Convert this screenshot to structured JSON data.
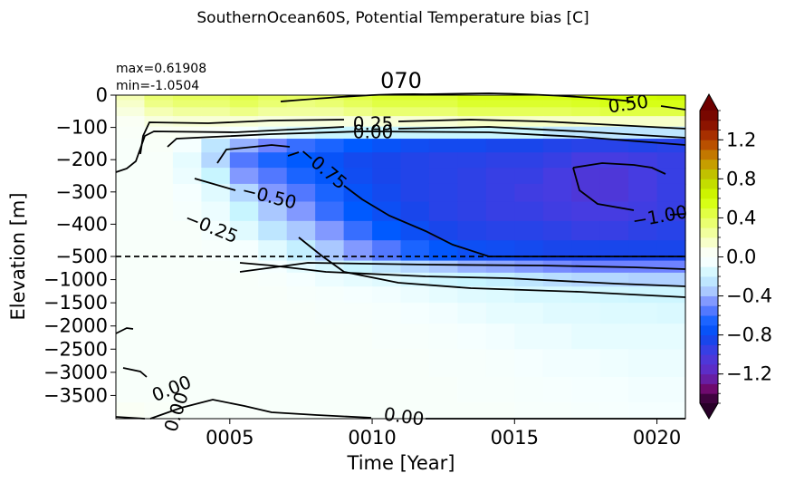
{
  "figure": {
    "suptitle": "SouthernOcean60S, Potential Temperature bias [C]",
    "stat_max": "max=0.61908",
    "stat_min": "min=-1.0504"
  },
  "chart_data": {
    "type": "heatmap",
    "title": "070",
    "xlabel": "Time [Year]",
    "ylabel": "Elevation [m]",
    "x_range": [
      1,
      21
    ],
    "x_ticks": [
      5,
      10,
      15,
      20
    ],
    "x_tick_labels": [
      "0005",
      "0010",
      "0015",
      "0020"
    ],
    "y_ticks_upper": [
      0,
      -100,
      -200,
      -300,
      -400,
      -500
    ],
    "y_tick_labels_upper": [
      "0",
      "−100",
      "−200",
      "−300",
      "−400",
      "−500"
    ],
    "y_ticks_lower": [
      -1000,
      -1500,
      -2000,
      -2500,
      -3000,
      -3500
    ],
    "y_tick_labels_lower": [
      "−1000",
      "−1500",
      "−2000",
      "−2500",
      "−3000",
      "−3500"
    ],
    "split_depth": -500,
    "split_line": "dashed",
    "colorbar": {
      "vmin": -1.5,
      "vmax": 1.5,
      "ticks": [
        1.2,
        0.8,
        0.4,
        0.0,
        -0.4,
        -0.8,
        -1.2
      ],
      "tick_labels": [
        "1.2",
        "0.8",
        "0.4",
        "0.0",
        "−0.4",
        "−0.8",
        "−1.2"
      ],
      "extend": "both"
    },
    "contour_labels": [
      "0.50",
      "0.25",
      "0.00",
      "−0.75",
      "−0.50",
      "−0.25",
      "−1.00",
      "0.00",
      "0.00",
      "0.00"
    ],
    "years": [
      1,
      2,
      3,
      4,
      5,
      6,
      7,
      8,
      9,
      10,
      11,
      12,
      13,
      14,
      15,
      16,
      17,
      18,
      19,
      20
    ],
    "depths": [
      -5,
      -25,
      -50,
      -80,
      -115,
      -155,
      -200,
      -250,
      -300,
      -360,
      -420,
      -480,
      -700,
      -1000,
      -1300,
      -1700,
      -2200,
      -2800,
      -3400,
      -3900
    ],
    "values": [
      [
        0.2,
        0.35,
        0.4,
        0.4,
        0.45,
        0.4,
        0.38,
        0.4,
        0.45,
        0.5,
        0.5,
        0.5,
        0.55,
        0.55,
        0.55,
        0.55,
        0.58,
        0.6,
        0.6,
        0.62
      ],
      [
        0.15,
        0.3,
        0.35,
        0.35,
        0.4,
        0.35,
        0.32,
        0.35,
        0.4,
        0.45,
        0.45,
        0.45,
        0.5,
        0.5,
        0.5,
        0.5,
        0.52,
        0.55,
        0.55,
        0.55
      ],
      [
        0.1,
        0.2,
        0.25,
        0.25,
        0.3,
        0.25,
        0.25,
        0.25,
        0.3,
        0.35,
        0.35,
        0.35,
        0.4,
        0.4,
        0.4,
        0.4,
        0.42,
        0.45,
        0.45,
        0.45
      ],
      [
        0.05,
        0.1,
        0.12,
        0.12,
        0.12,
        0.1,
        0.1,
        0.1,
        0.1,
        0.12,
        0.12,
        0.12,
        0.15,
        0.15,
        0.15,
        0.15,
        0.15,
        0.15,
        0.15,
        0.15
      ],
      [
        0.02,
        0.05,
        0.05,
        0.02,
        -0.05,
        -0.1,
        -0.15,
        -0.2,
        -0.2,
        -0.2,
        -0.2,
        -0.2,
        -0.2,
        -0.2,
        -0.2,
        -0.25,
        -0.25,
        -0.25,
        -0.25,
        -0.25
      ],
      [
        0.0,
        0.02,
        -0.05,
        -0.25,
        -0.4,
        -0.5,
        -0.6,
        -0.65,
        -0.7,
        -0.75,
        -0.8,
        -0.82,
        -0.82,
        -0.85,
        -0.85,
        -0.88,
        -0.9,
        -0.9,
        -0.88,
        -0.9
      ],
      [
        0.0,
        0.0,
        -0.1,
        -0.3,
        -0.55,
        -0.65,
        -0.7,
        -0.75,
        -0.82,
        -0.85,
        -0.88,
        -0.9,
        -0.9,
        -0.92,
        -0.92,
        -0.95,
        -1.0,
        -1.0,
        -0.98,
        -0.95
      ],
      [
        0.0,
        0.0,
        -0.08,
        -0.2,
        -0.45,
        -0.55,
        -0.65,
        -0.72,
        -0.8,
        -0.85,
        -0.88,
        -0.9,
        -0.92,
        -0.95,
        -0.95,
        -1.0,
        -1.05,
        -1.05,
        -1.0,
        -0.95
      ],
      [
        0.0,
        0.0,
        -0.05,
        -0.12,
        -0.3,
        -0.45,
        -0.55,
        -0.65,
        -0.75,
        -0.82,
        -0.88,
        -0.9,
        -0.92,
        -0.95,
        -0.98,
        -1.0,
        -1.05,
        -1.05,
        -1.0,
        -0.95
      ],
      [
        0.0,
        0.0,
        -0.03,
        -0.08,
        -0.2,
        -0.35,
        -0.45,
        -0.6,
        -0.7,
        -0.78,
        -0.85,
        -0.9,
        -0.92,
        -0.95,
        -0.95,
        -0.98,
        -1.0,
        -1.0,
        -0.98,
        -0.95
      ],
      [
        0.0,
        0.0,
        0.0,
        -0.05,
        -0.12,
        -0.25,
        -0.35,
        -0.45,
        -0.6,
        -0.7,
        -0.78,
        -0.85,
        -0.88,
        -0.9,
        -0.9,
        -0.92,
        -0.95,
        -0.95,
        -0.92,
        -0.9
      ],
      [
        0.0,
        0.0,
        0.0,
        -0.02,
        -0.05,
        -0.12,
        -0.22,
        -0.35,
        -0.45,
        -0.55,
        -0.65,
        -0.72,
        -0.78,
        -0.8,
        -0.82,
        -0.85,
        -0.85,
        -0.85,
        -0.85,
        -0.85
      ],
      [
        0.0,
        0.0,
        0.0,
        0.0,
        -0.02,
        -0.05,
        -0.1,
        -0.15,
        -0.2,
        -0.25,
        -0.3,
        -0.35,
        -0.4,
        -0.42,
        -0.45,
        -0.48,
        -0.5,
        -0.5,
        -0.5,
        -0.5
      ],
      [
        0.0,
        0.0,
        0.0,
        0.0,
        0.0,
        -0.02,
        -0.05,
        -0.08,
        -0.1,
        -0.12,
        -0.15,
        -0.18,
        -0.2,
        -0.22,
        -0.25,
        -0.28,
        -0.3,
        -0.3,
        -0.32,
        -0.32
      ],
      [
        0.0,
        0.0,
        0.0,
        0.0,
        0.0,
        0.0,
        -0.02,
        -0.03,
        -0.05,
        -0.06,
        -0.08,
        -0.1,
        -0.12,
        -0.13,
        -0.15,
        -0.15,
        -0.16,
        -0.17,
        -0.18,
        -0.18
      ],
      [
        0.0,
        0.0,
        0.0,
        0.0,
        0.0,
        0.0,
        0.0,
        -0.02,
        -0.02,
        -0.03,
        -0.05,
        -0.06,
        -0.08,
        -0.1,
        -0.1,
        -0.12,
        -0.12,
        -0.13,
        -0.13,
        -0.14
      ],
      [
        0.0,
        0.0,
        0.0,
        0.0,
        0.0,
        0.0,
        0.0,
        0.0,
        0.0,
        -0.02,
        -0.02,
        -0.03,
        -0.05,
        -0.06,
        -0.08,
        -0.08,
        -0.1,
        -0.1,
        -0.1,
        -0.1
      ],
      [
        0.0,
        0.0,
        0.0,
        0.0,
        0.0,
        0.0,
        0.0,
        0.0,
        0.0,
        0.0,
        0.0,
        -0.02,
        -0.02,
        -0.03,
        -0.05,
        -0.06,
        -0.06,
        -0.07,
        -0.08,
        -0.08
      ],
      [
        0.0,
        0.0,
        0.0,
        0.0,
        0.0,
        0.0,
        0.0,
        0.0,
        0.0,
        0.0,
        0.0,
        0.0,
        -0.02,
        -0.02,
        -0.03,
        -0.04,
        -0.05,
        -0.05,
        -0.06,
        -0.06
      ],
      [
        0.05,
        0.02,
        0.0,
        0.0,
        0.0,
        0.0,
        0.0,
        0.0,
        0.0,
        0.0,
        0.0,
        0.0,
        0.0,
        0.0,
        -0.02,
        -0.02,
        -0.03,
        -0.04,
        -0.05,
        -0.05
      ]
    ]
  }
}
